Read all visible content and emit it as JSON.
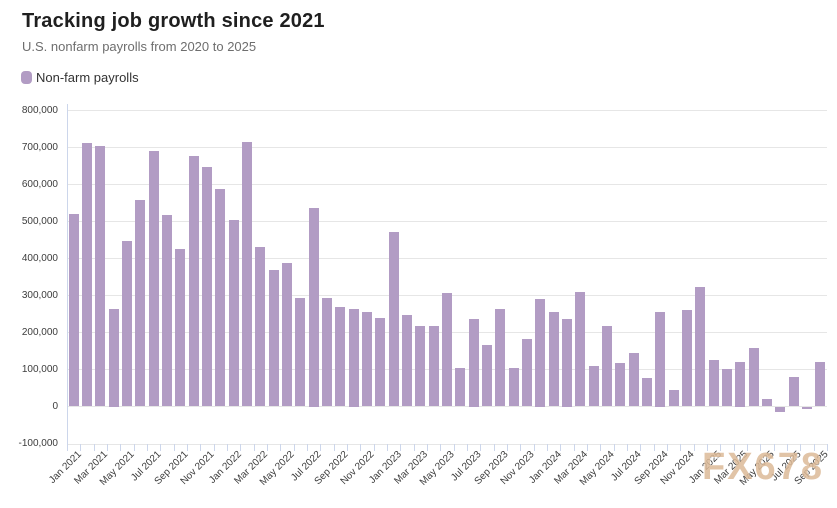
{
  "header": {
    "title": "Tracking job growth since 2021",
    "subtitle": "U.S. nonfarm payrolls from 2020 to 2025"
  },
  "legend": {
    "label": "Non-farm payrolls",
    "swatch_color": "#b29cc4"
  },
  "watermark": {
    "text": "FX678",
    "color": "#dcba98"
  },
  "colors": {
    "bar": "#b29cc4",
    "grid": "#e6e6e6",
    "axis": "#ccd6eb",
    "tick_text": "#3c3c3c",
    "title_text": "#1f1f1f",
    "subtitle_text": "#6e6e6e"
  },
  "chart_data": {
    "type": "bar",
    "title": "Tracking job growth since 2021",
    "subtitle": "U.S. nonfarm payrolls from 2020 to 2025",
    "series": [
      {
        "name": "Non-farm payrolls",
        "color": "#b29cc4"
      }
    ],
    "categories": [
      "Jan 2021",
      "Feb 2021",
      "Mar 2021",
      "Apr 2021",
      "May 2021",
      "Jun 2021",
      "Jul 2021",
      "Aug 2021",
      "Sep 2021",
      "Oct 2021",
      "Nov 2021",
      "Dec 2021",
      "Jan 2022",
      "Feb 2022",
      "Mar 2022",
      "Apr 2022",
      "May 2022",
      "Jun 2022",
      "Jul 2022",
      "Aug 2022",
      "Sep 2022",
      "Oct 2022",
      "Nov 2022",
      "Dec 2022",
      "Jan 2023",
      "Feb 2023",
      "Mar 2023",
      "Apr 2023",
      "May 2023",
      "Jun 2023",
      "Jul 2023",
      "Aug 2023",
      "Sep 2023",
      "Oct 2023",
      "Nov 2023",
      "Dec 2023",
      "Jan 2024",
      "Feb 2024",
      "Mar 2024",
      "Apr 2024",
      "May 2024",
      "Jun 2024",
      "Jul 2024",
      "Aug 2024",
      "Sep 2024",
      "Oct 2024",
      "Nov 2024",
      "Dec 2024",
      "Jan 2025",
      "Feb 2025",
      "Mar 2025",
      "Apr 2025",
      "May 2025",
      "Jun 2025",
      "Jul 2025",
      "Aug 2025",
      "Sep 2025"
    ],
    "values": [
      520000,
      710000,
      704000,
      263000,
      447000,
      557000,
      689000,
      517000,
      424000,
      677000,
      647000,
      588000,
      504000,
      714000,
      431000,
      368000,
      386000,
      293000,
      537000,
      292000,
      269000,
      263000,
      256000,
      239000,
      472000,
      248000,
      217000,
      217000,
      306000,
      105000,
      236000,
      165000,
      262000,
      105000,
      182000,
      290000,
      256000,
      236000,
      310000,
      108000,
      216000,
      118000,
      144000,
      78000,
      255000,
      44000,
      261000,
      323000,
      125000,
      102000,
      120000,
      158000,
      19000,
      -13000,
      79000,
      -4000,
      119000
    ],
    "ylim": [
      -100000,
      800000
    ],
    "ytick_interval": 100000,
    "ytick_labels": [
      "800,000",
      "700,000",
      "600,000",
      "500,000",
      "400,000",
      "300,000",
      "200,000",
      "100,000",
      "0",
      "-100,000"
    ],
    "xtick_label_every": 2,
    "grid": true,
    "legend_position": "top-left",
    "xlabel": "",
    "ylabel": ""
  }
}
